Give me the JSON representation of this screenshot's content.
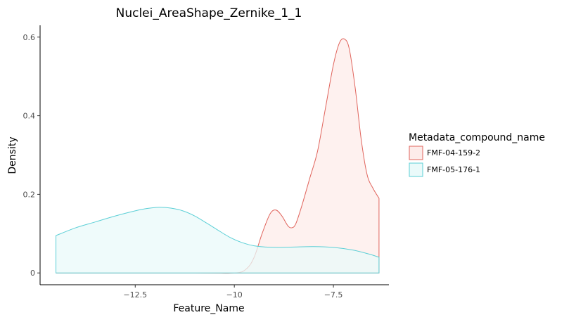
{
  "chart_data": {
    "type": "area",
    "title": "Nuclei_AreaShape_Zernike_1_1",
    "xlabel": "Feature_Name",
    "ylabel": "Density",
    "xlim": [
      -14.9,
      -6.1
    ],
    "ylim": [
      -0.03,
      0.63
    ],
    "x_ticks": [
      -12.5,
      -10,
      -7.5
    ],
    "x_tick_labels": [
      "−12.5",
      "−10",
      "−7.5"
    ],
    "y_ticks": [
      0,
      0.2,
      0.4,
      0.6
    ],
    "y_tick_labels": [
      "0",
      "0.2",
      "0.4",
      "0.6"
    ],
    "grid": false,
    "legend": {
      "title": "Metadata_compound_name",
      "position": "right"
    },
    "series": [
      {
        "name": "FMF-04-159-2",
        "line_color": "#e0645c",
        "fill_color": "#fdecea",
        "x": [
          -14.5,
          -11.0,
          -10.0,
          -9.7,
          -9.5,
          -9.3,
          -9.1,
          -8.95,
          -8.8,
          -8.65,
          -8.55,
          -8.45,
          -8.3,
          -8.1,
          -7.9,
          -7.7,
          -7.5,
          -7.35,
          -7.22,
          -7.1,
          -6.95,
          -6.8,
          -6.65,
          -6.5,
          -6.35
        ],
        "y": [
          0,
          0,
          0.0,
          0.01,
          0.04,
          0.1,
          0.15,
          0.16,
          0.145,
          0.12,
          0.115,
          0.125,
          0.17,
          0.24,
          0.31,
          0.42,
          0.53,
          0.585,
          0.595,
          0.57,
          0.47,
          0.34,
          0.25,
          0.215,
          0.19
        ]
      },
      {
        "name": "FMF-05-176-1",
        "line_color": "#5bcfd6",
        "fill_color": "#eafafa",
        "x": [
          -14.5,
          -14.0,
          -13.5,
          -13.0,
          -12.5,
          -12.2,
          -11.9,
          -11.6,
          -11.3,
          -11.0,
          -10.7,
          -10.4,
          -10.1,
          -9.8,
          -9.5,
          -9.2,
          -8.9,
          -8.5,
          -8.0,
          -7.5,
          -7.0,
          -6.6,
          -6.35
        ],
        "y": [
          0.095,
          0.115,
          0.13,
          0.145,
          0.158,
          0.164,
          0.167,
          0.165,
          0.158,
          0.145,
          0.127,
          0.108,
          0.09,
          0.077,
          0.069,
          0.066,
          0.065,
          0.066,
          0.067,
          0.065,
          0.058,
          0.048,
          0.04
        ]
      }
    ]
  }
}
